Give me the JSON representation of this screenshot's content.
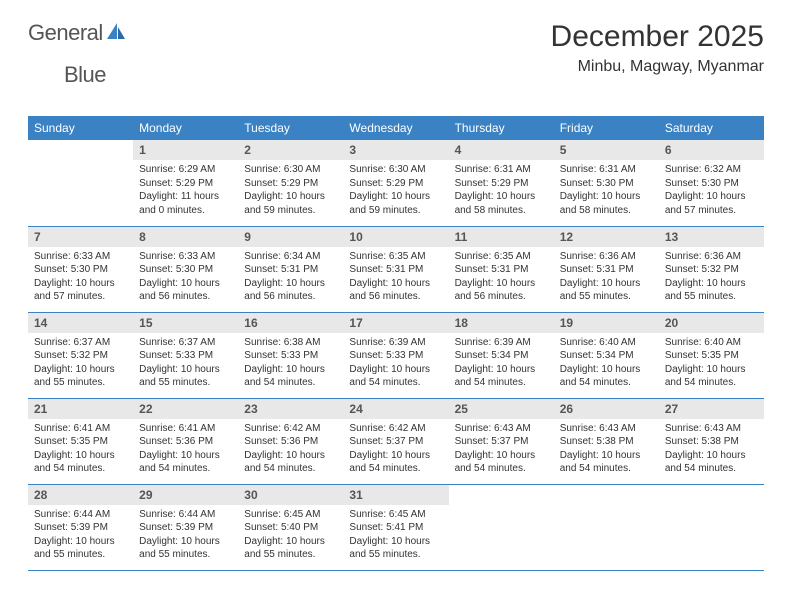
{
  "brand": {
    "part1": "General",
    "part2": "Blue"
  },
  "title": "December 2025",
  "location": "Minbu, Magway, Myanmar",
  "colors": {
    "header_bg": "#3b82c4",
    "header_text": "#ffffff",
    "daynum_bg": "#e8e8e8",
    "border": "#3b82c4",
    "body_text": "#333333",
    "page_bg": "#ffffff"
  },
  "typography": {
    "title_fontsize": 30,
    "location_fontsize": 16,
    "header_fontsize": 12,
    "daynum_fontsize": 12,
    "body_fontsize": 10
  },
  "weekdays": [
    "Sunday",
    "Monday",
    "Tuesday",
    "Wednesday",
    "Thursday",
    "Friday",
    "Saturday"
  ],
  "weeks": [
    [
      {
        "blank": true
      },
      {
        "n": "1",
        "sr": "6:29 AM",
        "ss": "5:29 PM",
        "dl": "11 hours and 0 minutes."
      },
      {
        "n": "2",
        "sr": "6:30 AM",
        "ss": "5:29 PM",
        "dl": "10 hours and 59 minutes."
      },
      {
        "n": "3",
        "sr": "6:30 AM",
        "ss": "5:29 PM",
        "dl": "10 hours and 59 minutes."
      },
      {
        "n": "4",
        "sr": "6:31 AM",
        "ss": "5:29 PM",
        "dl": "10 hours and 58 minutes."
      },
      {
        "n": "5",
        "sr": "6:31 AM",
        "ss": "5:30 PM",
        "dl": "10 hours and 58 minutes."
      },
      {
        "n": "6",
        "sr": "6:32 AM",
        "ss": "5:30 PM",
        "dl": "10 hours and 57 minutes."
      }
    ],
    [
      {
        "n": "7",
        "sr": "6:33 AM",
        "ss": "5:30 PM",
        "dl": "10 hours and 57 minutes."
      },
      {
        "n": "8",
        "sr": "6:33 AM",
        "ss": "5:30 PM",
        "dl": "10 hours and 56 minutes."
      },
      {
        "n": "9",
        "sr": "6:34 AM",
        "ss": "5:31 PM",
        "dl": "10 hours and 56 minutes."
      },
      {
        "n": "10",
        "sr": "6:35 AM",
        "ss": "5:31 PM",
        "dl": "10 hours and 56 minutes."
      },
      {
        "n": "11",
        "sr": "6:35 AM",
        "ss": "5:31 PM",
        "dl": "10 hours and 56 minutes."
      },
      {
        "n": "12",
        "sr": "6:36 AM",
        "ss": "5:31 PM",
        "dl": "10 hours and 55 minutes."
      },
      {
        "n": "13",
        "sr": "6:36 AM",
        "ss": "5:32 PM",
        "dl": "10 hours and 55 minutes."
      }
    ],
    [
      {
        "n": "14",
        "sr": "6:37 AM",
        "ss": "5:32 PM",
        "dl": "10 hours and 55 minutes."
      },
      {
        "n": "15",
        "sr": "6:37 AM",
        "ss": "5:33 PM",
        "dl": "10 hours and 55 minutes."
      },
      {
        "n": "16",
        "sr": "6:38 AM",
        "ss": "5:33 PM",
        "dl": "10 hours and 54 minutes."
      },
      {
        "n": "17",
        "sr": "6:39 AM",
        "ss": "5:33 PM",
        "dl": "10 hours and 54 minutes."
      },
      {
        "n": "18",
        "sr": "6:39 AM",
        "ss": "5:34 PM",
        "dl": "10 hours and 54 minutes."
      },
      {
        "n": "19",
        "sr": "6:40 AM",
        "ss": "5:34 PM",
        "dl": "10 hours and 54 minutes."
      },
      {
        "n": "20",
        "sr": "6:40 AM",
        "ss": "5:35 PM",
        "dl": "10 hours and 54 minutes."
      }
    ],
    [
      {
        "n": "21",
        "sr": "6:41 AM",
        "ss": "5:35 PM",
        "dl": "10 hours and 54 minutes."
      },
      {
        "n": "22",
        "sr": "6:41 AM",
        "ss": "5:36 PM",
        "dl": "10 hours and 54 minutes."
      },
      {
        "n": "23",
        "sr": "6:42 AM",
        "ss": "5:36 PM",
        "dl": "10 hours and 54 minutes."
      },
      {
        "n": "24",
        "sr": "6:42 AM",
        "ss": "5:37 PM",
        "dl": "10 hours and 54 minutes."
      },
      {
        "n": "25",
        "sr": "6:43 AM",
        "ss": "5:37 PM",
        "dl": "10 hours and 54 minutes."
      },
      {
        "n": "26",
        "sr": "6:43 AM",
        "ss": "5:38 PM",
        "dl": "10 hours and 54 minutes."
      },
      {
        "n": "27",
        "sr": "6:43 AM",
        "ss": "5:38 PM",
        "dl": "10 hours and 54 minutes."
      }
    ],
    [
      {
        "n": "28",
        "sr": "6:44 AM",
        "ss": "5:39 PM",
        "dl": "10 hours and 55 minutes."
      },
      {
        "n": "29",
        "sr": "6:44 AM",
        "ss": "5:39 PM",
        "dl": "10 hours and 55 minutes."
      },
      {
        "n": "30",
        "sr": "6:45 AM",
        "ss": "5:40 PM",
        "dl": "10 hours and 55 minutes."
      },
      {
        "n": "31",
        "sr": "6:45 AM",
        "ss": "5:41 PM",
        "dl": "10 hours and 55 minutes."
      },
      {
        "blank": true
      },
      {
        "blank": true
      },
      {
        "blank": true
      }
    ]
  ],
  "labels": {
    "sunrise": "Sunrise:",
    "sunset": "Sunset:",
    "daylight": "Daylight:"
  }
}
